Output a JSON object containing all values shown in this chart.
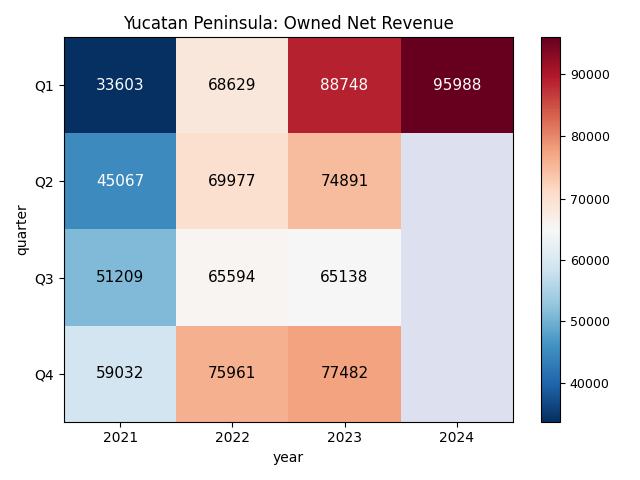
{
  "title": "Yucatan Peninsula: Owned Net Revenue",
  "xlabel": "year",
  "ylabel": "quarter",
  "years": [
    2021,
    2022,
    2023,
    2024
  ],
  "quarters": [
    "Q1",
    "Q2",
    "Q3",
    "Q4"
  ],
  "values": [
    [
      33603,
      68629,
      88748,
      95988
    ],
    [
      45067,
      69977,
      74891,
      null
    ],
    [
      51209,
      65594,
      65138,
      null
    ],
    [
      59032,
      75961,
      77482,
      null
    ]
  ],
  "vcenter": 65000,
  "vmin": 33603,
  "vmax": 95988,
  "cmap": "RdBu_r",
  "colorbar_ticks": [
    40000,
    50000,
    60000,
    70000,
    80000,
    90000
  ],
  "bad_color": "#dde0ee",
  "figsize": [
    6.4,
    4.8
  ],
  "dpi": 100
}
